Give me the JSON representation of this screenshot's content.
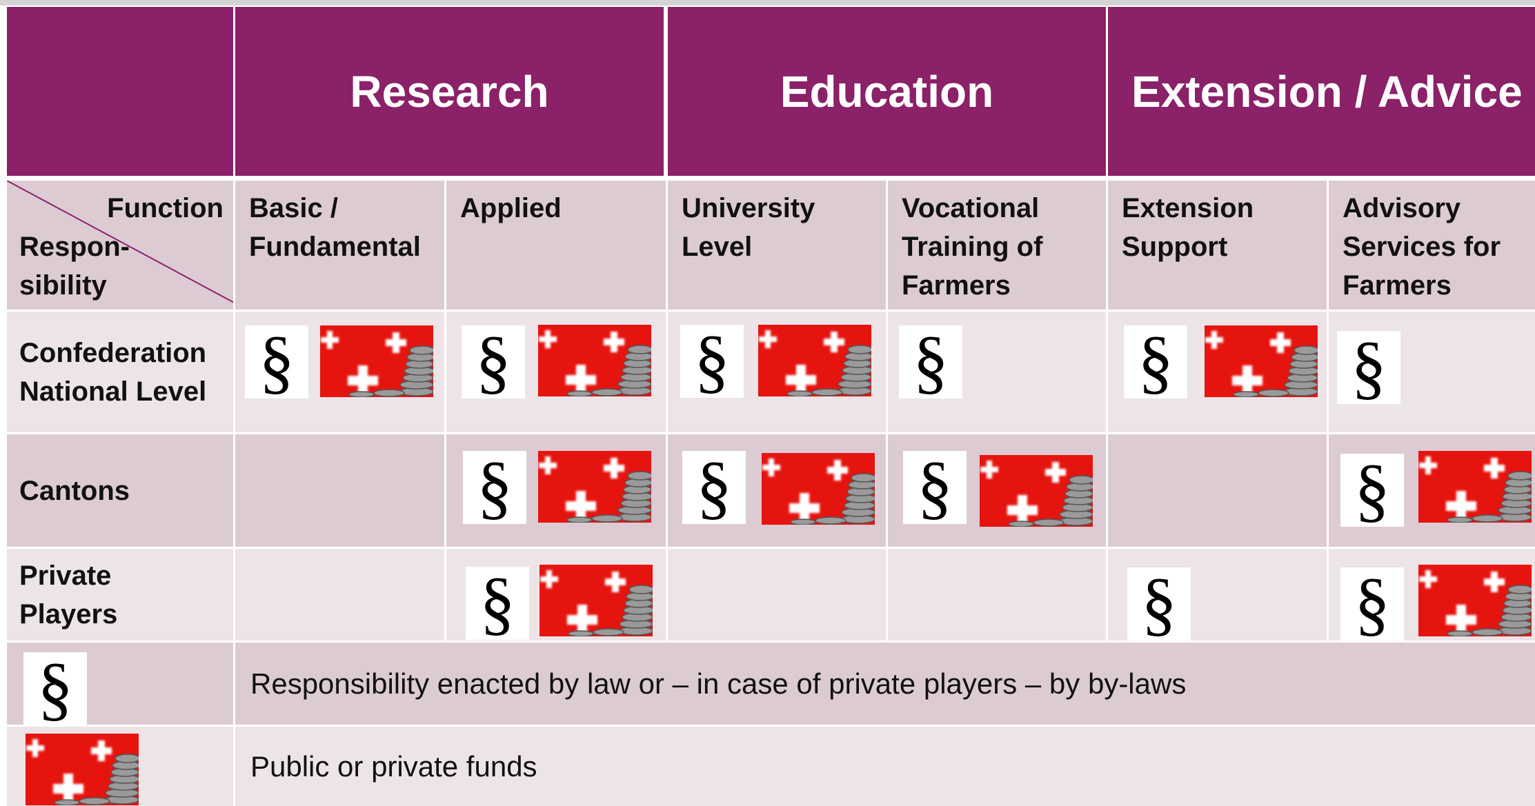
{
  "header": {
    "groups": [
      "Research",
      "Education",
      "Extension / Advice"
    ],
    "corner": {
      "function": "Function",
      "responsibility": [
        "Respon-",
        "sibility"
      ]
    },
    "functions": [
      [
        "Basic /",
        "Fundamental"
      ],
      [
        "Applied"
      ],
      [
        "University",
        "Level"
      ],
      [
        "Vocational",
        "Training of",
        "Farmers"
      ],
      [
        "Extension",
        "Support"
      ],
      [
        "Advisory",
        "Services for",
        "Farmers"
      ]
    ]
  },
  "rows": [
    [
      "Confederation",
      "National Level"
    ],
    [
      "Cantons"
    ],
    [
      "Private",
      "Players"
    ]
  ],
  "legend": [
    {
      "symbol": "§",
      "text": "Responsibility enacted by law or – in case of private players – by by-laws"
    },
    {
      "text": "Public or private funds"
    }
  ]
}
